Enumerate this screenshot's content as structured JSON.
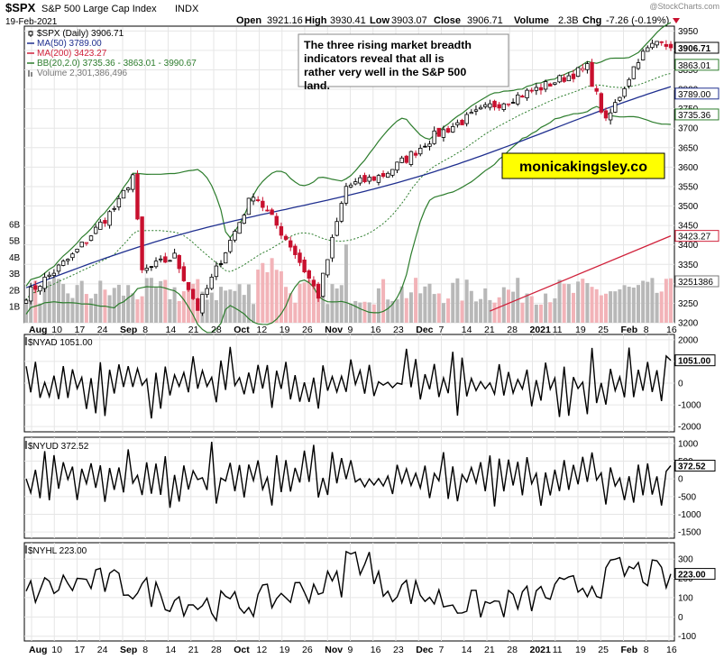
{
  "header": {
    "symbol": "$SPX",
    "name": "S&P 500 Large Cap Index",
    "exchange": "INDX",
    "date": "19-Feb-2021",
    "watermark": "@StockCharts.com",
    "ohlc": {
      "open_label": "Open",
      "open": "3921.16",
      "high_label": "High",
      "high": "3930.41",
      "low_label": "Low",
      "low": "3903.07",
      "close_label": "Close",
      "close": "3906.71",
      "volume_label": "Volume",
      "volume": "2.3B",
      "chg_label": "Chg",
      "chg": "-7.26 (-0.19%)"
    }
  },
  "legend": [
    {
      "text": "$SPX (Daily) 3906.71",
      "color": "#000000",
      "icon": "candle-icon"
    },
    {
      "text": "MA(50) 3789.00",
      "color": "#1f2f8f",
      "icon": "line-icon"
    },
    {
      "text": "MA(200) 3423.27",
      "color": "#d0203a",
      "icon": "line-icon"
    },
    {
      "text": "BB(20,2.0) 3735.36 - 3863.01 - 3990.67",
      "color": "#2d7d2d",
      "icon": "line-icon"
    },
    {
      "text": "Volume 2,301,386,496",
      "color": "#777777",
      "icon": "bar-icon"
    }
  ],
  "annotation": "The three rising market breadth indicators reveal that all is rather very well in the S&P 500 land.",
  "watermark_box": "monicakingsley.co",
  "colors": {
    "up": "#000000",
    "down": "#c8102e",
    "ma50": "#1f2f8f",
    "ma200": "#d0203a",
    "bb": "#2d7d2d",
    "volume_up": "#b8b8b8",
    "volume_down": "#f2b3b8",
    "grid": "#e6e6e6",
    "badge_yellow": "#ffff00"
  },
  "price_tags": [
    "3906.71",
    "3863.01",
    "3789.00",
    "3735.36",
    "3423.27",
    "3251386"
  ],
  "x_labels": [
    "Aug",
    "10",
    "17",
    "24",
    "Sep",
    "8",
    "14",
    "21",
    "28",
    "Oct",
    "12",
    "19",
    "26",
    "Nov",
    "9",
    "16",
    "23",
    "Dec",
    "7",
    "14",
    "21",
    "28",
    "2021",
    "11",
    "19",
    "25",
    "Feb",
    "8",
    "16"
  ],
  "chart_data": [
    {
      "type": "candlestick",
      "title": "$SPX S&P 500 Large Cap Index INDX",
      "x_range": [
        "2020-07-31",
        "2021-02-19"
      ],
      "ylim": [
        3200,
        3960
      ],
      "y_ticks": [
        3200,
        3250,
        3300,
        3350,
        3400,
        3450,
        3500,
        3550,
        3600,
        3650,
        3700,
        3750,
        3800,
        3850,
        3900,
        3950
      ],
      "volume_ticks": [
        "1B",
        "2B",
        "3B",
        "4B",
        "5B",
        "6B"
      ],
      "key_closes": [
        {
          "date": "2020-07-31",
          "close": 3271
        },
        {
          "date": "2020-08-14",
          "close": 3372
        },
        {
          "date": "2020-08-28",
          "close": 3508
        },
        {
          "date": "2020-09-02",
          "close": 3580
        },
        {
          "date": "2020-09-08",
          "close": 3331
        },
        {
          "date": "2020-09-23",
          "close": 3237
        },
        {
          "date": "2020-10-12",
          "close": 3534
        },
        {
          "date": "2020-10-30",
          "close": 3270
        },
        {
          "date": "2020-11-09",
          "close": 3550
        },
        {
          "date": "2020-11-30",
          "close": 3622
        },
        {
          "date": "2020-12-31",
          "close": 3756
        },
        {
          "date": "2021-01-25",
          "close": 3855
        },
        {
          "date": "2021-01-29",
          "close": 3714
        },
        {
          "date": "2021-02-12",
          "close": 3934
        },
        {
          "date": "2021-02-19",
          "close": 3906.71
        }
      ],
      "series": [
        {
          "name": "MA(50)",
          "last": 3789.0
        },
        {
          "name": "MA(200)",
          "last": 3423.27
        },
        {
          "name": "BB(20,2.0)",
          "last": [
            3735.36,
            3863.01,
            3990.67
          ]
        }
      ]
    },
    {
      "type": "line",
      "title": "$NYAD 1051.00",
      "last": 1051.0,
      "ylim": [
        -2200,
        2200
      ],
      "y_ticks": [
        -2000,
        -1000,
        0,
        1000,
        2000
      ]
    },
    {
      "type": "line",
      "title": "$NYUD 372.52",
      "last": 372.52,
      "ylim": [
        -1650,
        1150
      ],
      "y_ticks": [
        -1500,
        -1000,
        -500,
        0,
        500,
        1000
      ]
    },
    {
      "type": "line",
      "title": "$NYHL 223.00",
      "last": 223.0,
      "ylim": [
        -120,
        380
      ],
      "y_ticks": [
        -100,
        0,
        100,
        200,
        300
      ]
    }
  ]
}
